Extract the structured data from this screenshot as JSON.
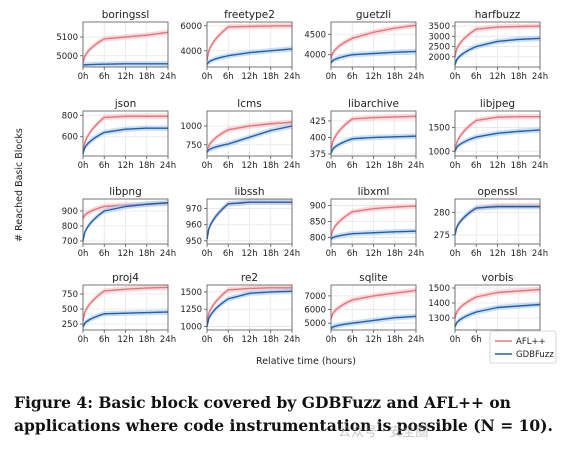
{
  "figure": {
    "ylabel": "# Reached Basic Blocks",
    "xlabel": "Relative time (hours)",
    "legend": [
      "AFL++",
      "GDBFuzz"
    ],
    "colors": {
      "afl": "#e8737a",
      "afl_band": "#f7c3c6",
      "gdb": "#1f5fae",
      "gdb_band": "#a9c9ea"
    }
  },
  "caption": "Figure 4: Basic block covered by GDBFuzz and AFL++ on applications where code instrumentation is possible (N = 10).",
  "watermark": "公众号 · 安全圈",
  "chart_data": [
    {
      "type": "line",
      "title": "boringssl",
      "x": [
        0,
        6,
        12,
        18,
        24
      ],
      "xticklabels": [
        "0h",
        "6h",
        "12h",
        "18h",
        "24h"
      ],
      "yticks": [
        5000,
        5100
      ],
      "ylim": [
        4940,
        5180
      ],
      "series": [
        {
          "name": "AFL++",
          "values": [
            4960,
            5090,
            5100,
            5110,
            5125
          ]
        },
        {
          "name": "GDBFuzz",
          "values": [
            4950,
            4955,
            4957,
            4957,
            4957
          ]
        }
      ]
    },
    {
      "type": "line",
      "title": "freetype2",
      "x": [
        0,
        6,
        12,
        18,
        24
      ],
      "xticklabels": [
        "0h",
        "6h",
        "12h",
        "18h",
        "24h"
      ],
      "yticks": [
        4000,
        6000
      ],
      "ylim": [
        2700,
        6300
      ],
      "series": [
        {
          "name": "AFL++",
          "values": [
            3200,
            5900,
            5950,
            5980,
            6000
          ]
        },
        {
          "name": "GDBFuzz",
          "values": [
            2900,
            3600,
            3850,
            4000,
            4150
          ]
        }
      ]
    },
    {
      "type": "line",
      "title": "guetzli",
      "x": [
        0,
        6,
        12,
        18,
        24
      ],
      "xticklabels": [
        "0h",
        "6h",
        "12h",
        "18h",
        "24h"
      ],
      "yticks": [
        4000,
        4500
      ],
      "ylim": [
        3700,
        4800
      ],
      "series": [
        {
          "name": "AFL++",
          "values": [
            3900,
            4400,
            4550,
            4650,
            4720
          ]
        },
        {
          "name": "GDBFuzz",
          "values": [
            3800,
            4000,
            4030,
            4060,
            4080
          ]
        }
      ]
    },
    {
      "type": "line",
      "title": "harfbuzz",
      "x": [
        0,
        6,
        12,
        18,
        24
      ],
      "xticklabels": [
        "0h",
        "6h",
        "12h",
        "18h",
        "24h"
      ],
      "yticks": [
        2000,
        2500,
        3000,
        3500
      ],
      "ylim": [
        1500,
        3700
      ],
      "series": [
        {
          "name": "AFL++",
          "values": [
            2000,
            3350,
            3450,
            3480,
            3500
          ]
        },
        {
          "name": "GDBFuzz",
          "values": [
            1600,
            2500,
            2750,
            2850,
            2900
          ]
        }
      ]
    },
    {
      "type": "line",
      "title": "json",
      "x": [
        0,
        6,
        12,
        18,
        24
      ],
      "xticklabels": [
        "0h",
        "6h",
        "12h",
        "18h",
        "24h"
      ],
      "yticks": [
        600,
        800
      ],
      "ylim": [
        420,
        840
      ],
      "series": [
        {
          "name": "AFL++",
          "values": [
            450,
            780,
            790,
            790,
            790
          ]
        },
        {
          "name": "GDBFuzz",
          "values": [
            440,
            640,
            670,
            680,
            680
          ]
        }
      ]
    },
    {
      "type": "line",
      "title": "lcms",
      "x": [
        0,
        6,
        12,
        18,
        24
      ],
      "xticklabels": [
        "0h",
        "6h",
        "12h",
        "18h",
        "24h"
      ],
      "yticks": [
        750,
        1000
      ],
      "ylim": [
        600,
        1200
      ],
      "series": [
        {
          "name": "AFL++",
          "values": [
            650,
            950,
            1000,
            1030,
            1050
          ]
        },
        {
          "name": "GDBFuzz",
          "values": [
            650,
            760,
            850,
            940,
            1000
          ]
        }
      ]
    },
    {
      "type": "line",
      "title": "libarchive",
      "x": [
        0,
        6,
        12,
        18,
        24
      ],
      "xticklabels": [
        "0h",
        "6h",
        "12h",
        "18h",
        "24h"
      ],
      "yticks": [
        375,
        400,
        425
      ],
      "ylim": [
        372,
        440
      ],
      "series": [
        {
          "name": "AFL++",
          "values": [
            380,
            428,
            430,
            431,
            432
          ]
        },
        {
          "name": "GDBFuzz",
          "values": [
            376,
            398,
            400,
            401,
            402
          ]
        }
      ]
    },
    {
      "type": "line",
      "title": "libjpeg",
      "x": [
        0,
        6,
        12,
        18,
        24
      ],
      "xticklabels": [
        "0h",
        "6h",
        "12h",
        "18h",
        "24h"
      ],
      "yticks": [
        1000,
        1500
      ],
      "ylim": [
        900,
        1850
      ],
      "series": [
        {
          "name": "AFL++",
          "values": [
            1000,
            1650,
            1720,
            1730,
            1730
          ]
        },
        {
          "name": "GDBFuzz",
          "values": [
            1000,
            1300,
            1380,
            1420,
            1450
          ]
        }
      ]
    },
    {
      "type": "line",
      "title": "libpng",
      "x": [
        0,
        6,
        12,
        18,
        24
      ],
      "xticklabels": [
        "0h",
        "6h",
        "12h",
        "18h",
        "24h"
      ],
      "yticks": [
        700,
        800,
        900
      ],
      "ylim": [
        680,
        980
      ],
      "series": [
        {
          "name": "AFL++",
          "values": [
            850,
            930,
            940,
            945,
            950
          ]
        },
        {
          "name": "GDBFuzz",
          "values": [
            700,
            900,
            930,
            945,
            955
          ]
        }
      ]
    },
    {
      "type": "line",
      "title": "libssh",
      "x": [
        0,
        6,
        12,
        18,
        24
      ],
      "xticklabels": [
        "0h",
        "6h",
        "12h",
        "18h",
        "24h"
      ],
      "yticks": [
        950,
        960,
        970
      ],
      "ylim": [
        948,
        976
      ],
      "series": [
        {
          "name": "AFL++",
          "values": [
            951,
            973,
            974,
            974,
            974
          ]
        },
        {
          "name": "GDBFuzz",
          "values": [
            951,
            973,
            974,
            974,
            974
          ]
        }
      ]
    },
    {
      "type": "line",
      "title": "libxml",
      "x": [
        0,
        6,
        12,
        18,
        24
      ],
      "xticklabels": [
        "0h",
        "6h",
        "12h",
        "18h",
        "24h"
      ],
      "yticks": [
        800,
        850,
        900
      ],
      "ylim": [
        780,
        920
      ],
      "series": [
        {
          "name": "AFL++",
          "values": [
            800,
            880,
            890,
            895,
            898
          ]
        },
        {
          "name": "GDBFuzz",
          "values": [
            795,
            812,
            815,
            818,
            820
          ]
        }
      ]
    },
    {
      "type": "line",
      "title": "openssl",
      "x": [
        0,
        6,
        12,
        18,
        24
      ],
      "xticklabels": [
        "0h",
        "6h",
        "12h",
        "18h",
        "24h"
      ],
      "yticks": [
        275,
        280
      ],
      "ylim": [
        273,
        283
      ],
      "series": [
        {
          "name": "AFL++",
          "values": [
            275,
            281,
            281.5,
            281.5,
            281.5
          ]
        },
        {
          "name": "GDBFuzz",
          "values": [
            275,
            281,
            281.3,
            281.3,
            281.3
          ]
        }
      ]
    },
    {
      "type": "line",
      "title": "proj4",
      "x": [
        0,
        6,
        12,
        18,
        24
      ],
      "xticklabels": [
        "0h",
        "6h",
        "12h",
        "18h",
        "24h"
      ],
      "yticks": [
        250,
        500,
        750
      ],
      "ylim": [
        150,
        900
      ],
      "series": [
        {
          "name": "AFL++",
          "values": [
            300,
            800,
            830,
            850,
            860
          ]
        },
        {
          "name": "GDBFuzz",
          "values": [
            200,
            420,
            430,
            440,
            450
          ]
        }
      ]
    },
    {
      "type": "line",
      "title": "re2",
      "x": [
        0,
        6,
        12,
        18,
        24
      ],
      "xticklabels": [
        "0h",
        "6h",
        "12h",
        "18h",
        "24h"
      ],
      "yticks": [
        1000,
        1250,
        1500
      ],
      "ylim": [
        950,
        1600
      ],
      "series": [
        {
          "name": "AFL++",
          "values": [
            1050,
            1530,
            1550,
            1560,
            1560
          ]
        },
        {
          "name": "GDBFuzz",
          "values": [
            1000,
            1400,
            1480,
            1500,
            1510
          ]
        }
      ]
    },
    {
      "type": "line",
      "title": "sqlite",
      "x": [
        0,
        6,
        12,
        18,
        24
      ],
      "xticklabels": [
        "0h",
        "6h",
        "12h",
        "18h",
        "24h"
      ],
      "yticks": [
        5000,
        6000,
        7000
      ],
      "ylim": [
        4500,
        7800
      ],
      "series": [
        {
          "name": "AFL++",
          "values": [
            5300,
            6700,
            7000,
            7200,
            7400
          ]
        },
        {
          "name": "GDBFuzz",
          "values": [
            4600,
            5000,
            5200,
            5400,
            5500
          ]
        }
      ]
    },
    {
      "type": "line",
      "title": "vorbis",
      "x": [
        0,
        6,
        12,
        18,
        24
      ],
      "xticklabels": [
        "0h",
        "6h",
        "12h",
        "18h",
        "24h"
      ],
      "yticks": [
        1300,
        1400,
        1500
      ],
      "ylim": [
        1220,
        1520
      ],
      "series": [
        {
          "name": "AFL++",
          "values": [
            1300,
            1440,
            1470,
            1480,
            1490
          ]
        },
        {
          "name": "GDBFuzz",
          "values": [
            1240,
            1340,
            1370,
            1380,
            1390
          ]
        }
      ]
    }
  ]
}
